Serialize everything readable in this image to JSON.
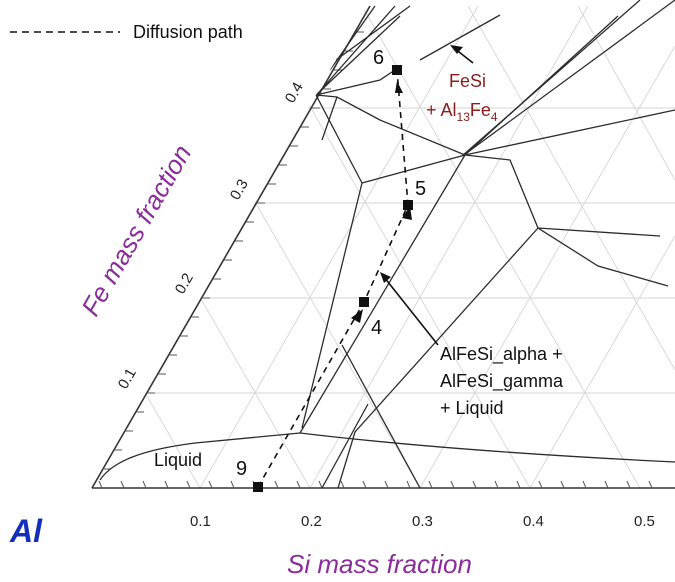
{
  "diagram": {
    "legend": {
      "label": "Diffusion path"
    },
    "element_corner": "Al",
    "x_axis": {
      "title": "Si mass fraction",
      "ticks": [
        "0.1",
        "0.2",
        "0.3",
        "0.4",
        "0.5"
      ]
    },
    "y_axis": {
      "title": "Fe mass fraction",
      "ticks": [
        "0.1",
        "0.2",
        "0.3",
        "0.4"
      ]
    },
    "points": [
      {
        "label": "9"
      },
      {
        "label": "4"
      },
      {
        "label": "5"
      },
      {
        "label": "6"
      }
    ],
    "annotations": {
      "liquid": "Liquid",
      "fesi_line1": "FeSi",
      "fesi_line2_prefix": "+ Al",
      "fesi_sub1": "13",
      "fesi_mid": "Fe",
      "fesi_sub2": "4",
      "alfesi_line1": "AlFeSi_alpha +",
      "alfesi_line2": "AlFeSi_gamma",
      "alfesi_line3": "+ Liquid"
    },
    "colors": {
      "axis_title": "#8a2c9a",
      "al_label": "#1530b8",
      "fesi_label": "#8b1c1c"
    }
  }
}
